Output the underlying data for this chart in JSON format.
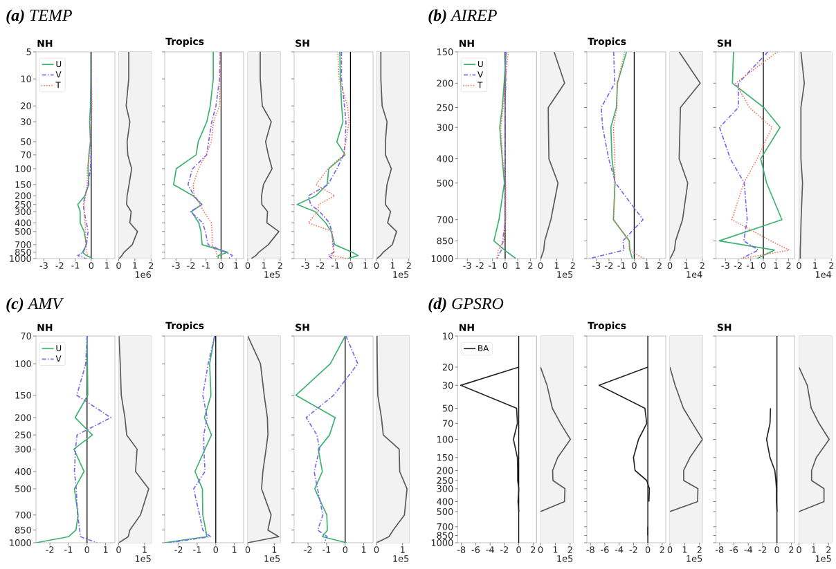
{
  "chart_data": [
    {
      "type": "other",
      "title": "**(a)** TEMP"
    },
    {
      "type": "line",
      "title": "NH",
      "xlim": [
        -3.5,
        1.5
      ],
      "ylim": [
        1000,
        5
      ],
      "log": "y",
      "legend": "top left",
      "xticks": [
        -3,
        -2,
        -1,
        0,
        1
      ],
      "yticks": [
        5,
        10,
        20,
        30,
        50,
        70,
        100,
        150,
        200,
        250,
        300,
        400,
        500,
        700,
        850,
        1000
      ],
      "ref_lines": [
        {
          "axis": "x",
          "value": 0,
          "color": "#000000"
        }
      ],
      "series": [
        {
          "name": "U",
          "color": "#3cb371",
          "line_style": "solid",
          "x": [
            -0.03,
            -0.03,
            -0.05,
            -0.1,
            -0.05,
            -0.15,
            -0.2,
            -0.15,
            -0.4,
            -0.85,
            -0.7,
            -0.7,
            -0.45,
            -0.3,
            -0.55,
            -0.3,
            0.1
          ],
          "values": [
            5,
            10,
            20,
            30,
            50,
            70,
            100,
            150,
            200,
            250,
            300,
            400,
            500,
            700,
            850,
            925,
            1000
          ]
        },
        {
          "name": "V",
          "color": "#7b68ee",
          "line_style": "dashdot",
          "x": [
            0,
            0,
            0,
            0,
            0,
            -0.02,
            -0.05,
            -0.2,
            -0.4,
            -0.5,
            -0.45,
            -0.3,
            -0.2,
            -0.3,
            -0.5,
            -0.85,
            -0.3
          ],
          "values": [
            5,
            10,
            20,
            30,
            50,
            70,
            100,
            150,
            200,
            250,
            300,
            400,
            500,
            700,
            850,
            925,
            1000
          ]
        },
        {
          "name": "T",
          "color": "#ff6347",
          "line_style": "dotted",
          "x": [
            0,
            0.02,
            0.05,
            0,
            -0.05,
            -0.1,
            -0.25,
            -0.25,
            -0.35,
            -0.45,
            -0.45,
            -0.4,
            -0.35,
            -0.35,
            -0.3,
            -0.2,
            -0.2
          ],
          "values": [
            5,
            10,
            20,
            30,
            50,
            70,
            100,
            150,
            200,
            250,
            300,
            400,
            500,
            700,
            850,
            925,
            1000
          ]
        }
      ]
    },
    {
      "type": "line",
      "xlim": [
        0,
        2.03
      ],
      "ylim": [
        1000,
        5
      ],
      "log": "y",
      "tick_labels": "x",
      "annotations": [
        "1e6"
      ],
      "xticks": [
        0,
        1,
        2
      ],
      "series": [
        {
          "color": "#5a5a5a",
          "x": [
            0.62,
            0.62,
            0.46,
            0.69,
            0.52,
            0.56,
            0.8,
            0.64,
            0.52,
            0.49,
            0.77,
            0.69,
            1.16,
            0.84,
            0.33,
            0.2,
            0.03
          ],
          "values": [
            5,
            10,
            20,
            30,
            50,
            70,
            100,
            150,
            200,
            250,
            300,
            400,
            500,
            700,
            850,
            925,
            1000
          ]
        }
      ]
    },
    {
      "type": "line",
      "title": "Tropics",
      "xlim": [
        -3.75,
        1.5
      ],
      "ylim": [
        1000,
        5
      ],
      "log": "y",
      "tick_labels": "x",
      "xticks": [
        -3,
        -2,
        -1,
        0,
        1
      ],
      "yticks": [
        5,
        10,
        20,
        30,
        50,
        70,
        100,
        150,
        200,
        250,
        300,
        400,
        500,
        700,
        850,
        1000
      ],
      "ref_lines": [
        {
          "axis": "x",
          "value": 0,
          "color": "#000000"
        }
      ],
      "series": [
        {
          "color": "#3cb371",
          "line_style": "solid",
          "x": [
            -0.52,
            -0.52,
            -0.72,
            -0.95,
            -1.52,
            -1.66,
            -2.98,
            -3.16,
            -1.86,
            -1.28,
            -1.97,
            -1.48,
            -1.34,
            -1.26,
            0.45,
            -0.19,
            -0.19
          ],
          "values": [
            5,
            10,
            20,
            30,
            50,
            70,
            100,
            150,
            200,
            250,
            300,
            400,
            500,
            700,
            850,
            925,
            1000
          ]
        },
        {
          "color": "#7b68ee",
          "line_style": "dashdot",
          "x": [
            -0.05,
            -0.1,
            -0.34,
            -0.62,
            -0.83,
            -0.95,
            -1.9,
            -2.2,
            -1.8,
            -1.28,
            -2.03,
            -1.22,
            -1.05,
            -0.86,
            0.3,
            0.75,
            0.5
          ],
          "values": [
            5,
            10,
            20,
            30,
            50,
            70,
            100,
            150,
            200,
            250,
            300,
            400,
            500,
            700,
            850,
            925,
            1000
          ]
        },
        {
          "color": "#ff6347",
          "line_style": "dotted",
          "x": [
            -0.05,
            -0.05,
            -0.1,
            -0.5,
            -0.65,
            -1.0,
            -1.5,
            -1.85,
            -1.8,
            -1.4,
            -1.15,
            -0.65,
            -0.6,
            -0.6,
            -0.3,
            -0.3
          ],
          "values": [
            5,
            10,
            20,
            30,
            50,
            70,
            100,
            150,
            200,
            250,
            300,
            400,
            500,
            700,
            850,
            1000
          ]
        }
      ]
    },
    {
      "type": "line",
      "xlim": [
        0,
        2.03
      ],
      "ylim": [
        1000,
        5
      ],
      "log": "y",
      "tick_labels": "x",
      "annotations": [
        "1e5"
      ],
      "xticks": [
        0,
        1,
        2
      ],
      "series": [
        {
          "color": "#5a5a5a",
          "x": [
            0.77,
            0.77,
            0.9,
            1.45,
            1.1,
            1.27,
            1.5,
            0.97,
            0.85,
            0.87,
            1.22,
            1.18,
            1.92,
            1.27,
            0.68,
            0.5,
            0.23
          ],
          "values": [
            5,
            10,
            20,
            30,
            50,
            70,
            100,
            150,
            200,
            250,
            300,
            400,
            500,
            700,
            850,
            925,
            1000
          ]
        }
      ]
    },
    {
      "type": "line",
      "title": "SH",
      "xlim": [
        -3.75,
        1.5
      ],
      "ylim": [
        1000,
        5
      ],
      "log": "y",
      "tick_labels": "x",
      "xticks": [
        -3,
        -2,
        -1,
        0,
        1
      ],
      "yticks": [
        5,
        10,
        20,
        30,
        50,
        70,
        100,
        150,
        200,
        250,
        300,
        400,
        500,
        700,
        850,
        1000
      ],
      "ref_lines": [
        {
          "axis": "x",
          "value": 0,
          "color": "#000000"
        }
      ],
      "series": [
        {
          "color": "#3cb371",
          "line_style": "solid",
          "x": [
            -0.71,
            -0.67,
            -0.59,
            -0.5,
            -0.91,
            -0.36,
            -1.45,
            -1.55,
            -2.31,
            -3.55,
            -2.36,
            -1.66,
            -1.28,
            -1.05,
            0.1,
            0.5,
            -0.2
          ],
          "values": [
            5,
            10,
            20,
            30,
            50,
            70,
            100,
            150,
            200,
            250,
            300,
            400,
            500,
            700,
            850,
            925,
            1000
          ]
        },
        {
          "color": "#7b68ee",
          "line_style": "dashdot",
          "x": [
            -0.6,
            -0.6,
            -0.4,
            -0.3,
            -0.35,
            -0.45,
            -0.9,
            -1.5,
            -2.8,
            -2.65,
            -2.05,
            -1.4,
            -1.25,
            -1.15,
            -1.1,
            -1.5,
            -1.2
          ],
          "values": [
            5,
            10,
            20,
            30,
            50,
            70,
            100,
            150,
            200,
            250,
            300,
            400,
            500,
            700,
            850,
            925,
            1000
          ]
        },
        {
          "color": "#ff6347",
          "line_style": "dotted",
          "x": [
            -0.85,
            -0.75,
            -0.2,
            -0.1,
            -0.3,
            -0.45,
            -1.5,
            -2.3,
            -1.05,
            -2.1,
            -2.2,
            -2.8,
            -1.2,
            -1.2,
            -1.1,
            -1.3,
            -0.2
          ],
          "values": [
            5,
            10,
            20,
            30,
            50,
            70,
            100,
            150,
            200,
            250,
            300,
            400,
            500,
            700,
            850,
            925,
            1000
          ]
        }
      ]
    },
    {
      "type": "line",
      "xlim": [
        0,
        2.03
      ],
      "ylim": [
        1000,
        5
      ],
      "log": "y",
      "tick_labels": "x",
      "annotations": [
        "1e5"
      ],
      "xticks": [
        0,
        1,
        2
      ],
      "series": [
        {
          "color": "#5a5a5a",
          "x": [
            0.27,
            0.27,
            0.35,
            0.65,
            0.55,
            0.55,
            0.92,
            0.65,
            0.58,
            0.55,
            0.87,
            0.69,
            1.24,
            0.98,
            0.42,
            0.25,
            0.03
          ],
          "values": [
            5,
            10,
            20,
            30,
            50,
            70,
            100,
            150,
            200,
            250,
            300,
            400,
            500,
            700,
            850,
            925,
            1000
          ]
        }
      ]
    },
    {
      "type": "other",
      "title": "**(b)** AIREP"
    },
    {
      "type": "line",
      "title": "NH",
      "xlim": [
        -3.75,
        2.5
      ],
      "ylim": [
        1000,
        150
      ],
      "log": "y",
      "legend": "top left",
      "xticks": [
        -3,
        -2,
        -1,
        0,
        1,
        2
      ],
      "yticks": [
        150,
        200,
        250,
        300,
        400,
        500,
        700,
        850,
        1000
      ],
      "ref_lines": [
        {
          "axis": "x",
          "value": 0,
          "color": "#000000"
        }
      ],
      "series": [
        {
          "name": "U",
          "color": "#3cb371",
          "line_style": "solid",
          "x": [
            0.08,
            -0.08,
            -0.23,
            -0.43,
            -0.23,
            -0.06,
            -0.49,
            -0.89,
            -0.05,
            0.85
          ],
          "values": [
            150,
            200,
            250,
            300,
            400,
            500,
            700,
            850,
            925,
            1000
          ]
        },
        {
          "name": "V",
          "color": "#7b68ee",
          "line_style": "dashdot",
          "x": [
            0.05,
            0.05,
            0,
            0.02,
            0,
            0,
            0.02,
            -0.2,
            -0.3,
            -0.65
          ],
          "values": [
            150,
            200,
            250,
            300,
            400,
            500,
            700,
            850,
            925,
            1000
          ]
        },
        {
          "name": "T",
          "color": "#ff6347",
          "line_style": "dotted",
          "x": [
            0.25,
            0,
            -0.15,
            -0.35,
            -0.2,
            0.05,
            0.05,
            -0.1,
            -0.55,
            -0.6
          ],
          "values": [
            150,
            200,
            250,
            300,
            400,
            500,
            700,
            850,
            925,
            1000
          ]
        }
      ]
    },
    {
      "type": "line",
      "xlim": [
        0,
        2.03
      ],
      "ylim": [
        1000,
        150
      ],
      "log": "y",
      "tick_labels": "x",
      "annotations": [
        "1e5"
      ],
      "xticks": [
        0,
        1,
        2
      ],
      "series": [
        {
          "color": "#5a5a5a",
          "x": [
            0.84,
            1.49,
            0.48,
            0.49,
            0.52,
            1.08,
            0.64,
            0.26,
            0.2,
            0.02
          ],
          "values": [
            150,
            200,
            250,
            300,
            400,
            500,
            700,
            850,
            925,
            1000
          ]
        }
      ]
    },
    {
      "type": "line",
      "title": "Tropics",
      "xlim": [
        -3.75,
        2.5
      ],
      "ylim": [
        1000,
        150
      ],
      "log": "y",
      "tick_labels": "x",
      "xticks": [
        -3,
        -2,
        -1,
        0,
        1,
        2
      ],
      "yticks": [
        150,
        200,
        250,
        300,
        400,
        500,
        700,
        850,
        1000
      ],
      "ref_lines": [
        {
          "axis": "x",
          "value": 0,
          "color": "#000000"
        }
      ],
      "series": [
        {
          "color": "#3cb371",
          "line_style": "solid",
          "x": [
            -0.61,
            -1.33,
            -1.41,
            -1.85,
            -1.76,
            -1.52,
            -1.65,
            -0.39,
            -0.35,
            -0.15
          ],
          "values": [
            150,
            200,
            250,
            300,
            400,
            500,
            700,
            850,
            925,
            1000
          ]
        },
        {
          "color": "#7b68ee",
          "line_style": "dashdot",
          "x": [
            -1.63,
            -1.54,
            -2.61,
            -2.5,
            -2.02,
            -1.48,
            0.7,
            -0.9,
            -0.8,
            -3.54
          ],
          "values": [
            150,
            200,
            250,
            300,
            400,
            500,
            700,
            850,
            925,
            1000
          ]
        },
        {
          "color": "#ff6347",
          "line_style": "dotted",
          "x": [
            -0.76,
            -1.33,
            -1.37,
            -1.65,
            -1.54,
            -1.54,
            -1.63,
            -0.4,
            -0.4,
            0.76
          ],
          "values": [
            150,
            200,
            250,
            300,
            400,
            500,
            700,
            850,
            925,
            1000
          ]
        }
      ]
    },
    {
      "type": "line",
      "xlim": [
        0,
        2.03
      ],
      "ylim": [
        1000,
        150
      ],
      "log": "y",
      "tick_labels": "x",
      "annotations": [
        "1e4"
      ],
      "xticks": [
        0,
        1,
        2
      ],
      "series": [
        {
          "color": "#5a5a5a",
          "x": [
            0.57,
            1.87,
            0.65,
            0.62,
            0.57,
            1.1,
            0.78,
            0.35,
            0.28,
            0.02
          ],
          "values": [
            150,
            200,
            250,
            300,
            400,
            500,
            700,
            850,
            925,
            1000
          ]
        }
      ]
    },
    {
      "type": "line",
      "title": "SH",
      "xlim": [
        -3.75,
        2.5
      ],
      "ylim": [
        1000,
        150
      ],
      "log": "y",
      "tick_labels": "x",
      "xticks": [
        -3,
        -2,
        -1,
        0,
        1,
        2
      ],
      "yticks": [
        150,
        200,
        250,
        300,
        400,
        500,
        700,
        850,
        1000
      ],
      "ref_lines": [
        {
          "axis": "x",
          "value": 0,
          "color": "#000000"
        }
      ],
      "series": [
        {
          "color": "#3cb371",
          "line_style": "solid",
          "x": [
            -2.36,
            -2.45,
            0.04,
            1.32,
            -0.21,
            0.26,
            1.47,
            -3.5,
            0.87,
            -0.5
          ],
          "values": [
            150,
            200,
            250,
            300,
            400,
            500,
            700,
            850,
            925,
            1000
          ]
        },
        {
          "color": "#7b68ee",
          "line_style": "dashdot",
          "x": [
            0.36,
            -1.98,
            -1.98,
            -3.47,
            -2.62,
            -1.51,
            -1.28,
            -1.55,
            -0.4,
            -1.75
          ],
          "values": [
            150,
            200,
            250,
            300,
            400,
            500,
            700,
            850,
            925,
            1000
          ]
        },
        {
          "color": "#ff6347",
          "line_style": "dotted",
          "x": [
            1.1,
            -2.19,
            -1.1,
            0.68,
            -0.49,
            -1.55,
            -2.5,
            0.6,
            2.05,
            -1.7
          ],
          "values": [
            150,
            200,
            250,
            300,
            400,
            500,
            700,
            850,
            925,
            1000
          ]
        }
      ]
    },
    {
      "type": "line",
      "xlim": [
        0,
        2.03
      ],
      "ylim": [
        1000,
        150
      ],
      "log": "y",
      "tick_labels": "x",
      "annotations": [
        "1e4"
      ],
      "xticks": [
        0,
        1,
        2
      ],
      "series": [
        {
          "color": "#5a5a5a",
          "x": [
            0.12,
            0.33,
            0.12,
            0.12,
            0.22,
            0.13,
            0.1,
            0.08,
            0.08
          ],
          "values": [
            150,
            200,
            250,
            400,
            500,
            700,
            850,
            925,
            1000
          ]
        }
      ]
    },
    {
      "type": "other",
      "title": "**(c)** AMV"
    },
    {
      "type": "line",
      "title": "NH",
      "xlim": [
        -2.75,
        1.5
      ],
      "ylim": [
        1000,
        70
      ],
      "log": "y",
      "legend": "top left",
      "xticks": [
        -2,
        -1,
        0,
        1
      ],
      "yticks": [
        70,
        100,
        150,
        200,
        250,
        300,
        400,
        500,
        700,
        850,
        1000
      ],
      "ref_lines": [
        {
          "axis": "x",
          "value": 0,
          "color": "#000000"
        }
      ],
      "series": [
        {
          "name": "U",
          "color": "#3cb371",
          "line_style": "solid",
          "x": [
            0,
            0.02,
            0.04,
            -0.64,
            0.29,
            -0.71,
            -0.16,
            -0.68,
            -0.48,
            -0.6,
            -0.99,
            -2.75
          ],
          "values": [
            70,
            100,
            150,
            200,
            250,
            300,
            400,
            500,
            700,
            850,
            925,
            1000
          ]
        },
        {
          "name": "V",
          "color": "#7b68ee",
          "line_style": "dashdot",
          "x": [
            0,
            -0.07,
            -0.55,
            1.28,
            -0.54,
            -0.62,
            -0.68,
            -0.58,
            -0.51,
            -0.39,
            -0.36,
            0.54
          ],
          "values": [
            70,
            100,
            150,
            200,
            250,
            300,
            400,
            500,
            700,
            850,
            925,
            1000
          ]
        }
      ]
    },
    {
      "type": "line",
      "xlim": [
        0,
        1.27
      ],
      "ylim": [
        1000,
        70
      ],
      "log": "y",
      "tick_labels": "x",
      "annotations": [
        "1e5"
      ],
      "xticks": [
        0,
        1
      ],
      "series": [
        {
          "color": "#5a5a5a",
          "x": [
            0.01,
            0.06,
            0.1,
            0.24,
            0.31,
            0.71,
            0.65,
            1.16,
            0.84,
            0.43,
            0.37,
            0.01
          ],
          "values": [
            70,
            100,
            150,
            200,
            250,
            300,
            400,
            500,
            700,
            850,
            925,
            1000
          ]
        }
      ]
    },
    {
      "type": "line",
      "title": "Tropics",
      "xlim": [
        -2.75,
        1.5
      ],
      "ylim": [
        1000,
        70
      ],
      "log": "y",
      "tick_labels": "x",
      "xticks": [
        -2,
        -1,
        0,
        1
      ],
      "yticks": [
        70,
        100,
        150,
        200,
        250,
        300,
        400,
        500,
        700,
        850,
        1000
      ],
      "ref_lines": [
        {
          "axis": "x",
          "value": 0,
          "color": "#000000"
        }
      ],
      "series": [
        {
          "color": "#3cb371",
          "line_style": "solid",
          "x": [
            -0.06,
            -0.33,
            -0.26,
            -0.61,
            -0.23,
            -0.58,
            -1.12,
            -0.72,
            -0.7,
            -0.54,
            -0.48,
            -2.75
          ],
          "values": [
            70,
            100,
            150,
            200,
            250,
            300,
            400,
            500,
            700,
            850,
            925,
            1000
          ]
        },
        {
          "color": "#7b68ee",
          "line_style": "dashdot",
          "x": [
            -0.06,
            -0.41,
            -0.7,
            -0.46,
            -0.65,
            -0.64,
            -0.58,
            -1.19,
            -0.87,
            -0.7,
            -0.29,
            -2.54
          ],
          "values": [
            70,
            100,
            150,
            200,
            250,
            300,
            400,
            500,
            700,
            850,
            925,
            1000
          ]
        }
      ]
    },
    {
      "type": "line",
      "xlim": [
        0,
        1.24
      ],
      "ylim": [
        1000,
        70
      ],
      "log": "y",
      "tick_labels": "x",
      "annotations": [
        "1e5"
      ],
      "xticks": [
        0,
        1
      ],
      "series": [
        {
          "color": "#5a5a5a",
          "x": [
            0,
            0.48,
            0.62,
            0.74,
            0.76,
            0.69,
            0.57,
            0.52,
            0.88,
            0.76,
            1.17,
            0
          ],
          "values": [
            70,
            100,
            150,
            200,
            250,
            300,
            400,
            500,
            700,
            850,
            925,
            1000
          ]
        }
      ]
    },
    {
      "type": "line",
      "title": "SH",
      "xlim": [
        -2.75,
        1.5
      ],
      "ylim": [
        1000,
        70
      ],
      "log": "y",
      "tick_labels": "x",
      "xticks": [
        -2,
        -1,
        0,
        1
      ],
      "yticks": [
        70,
        100,
        150,
        200,
        250,
        300,
        400,
        500,
        700,
        850,
        1000
      ],
      "ref_lines": [
        {
          "axis": "x",
          "value": 0,
          "color": "#000000"
        }
      ],
      "series": [
        {
          "color": "#3cb371",
          "line_style": "solid",
          "x": [
            0,
            -0.8,
            -2.65,
            -0.54,
            -0.84,
            -1.45,
            -1.23,
            -1.64,
            -0.99,
            -0.96,
            -1.23,
            0.07
          ],
          "values": [
            70,
            100,
            150,
            200,
            250,
            300,
            400,
            500,
            700,
            850,
            925,
            1000
          ]
        },
        {
          "color": "#7b68ee",
          "line_style": "dashdot",
          "x": [
            0.04,
            0.68,
            -0.62,
            -2.1,
            -1.52,
            -1.38,
            -1.67,
            -1.49,
            -1.2,
            -1.48,
            -0.97,
            -1.13
          ],
          "values": [
            70,
            100,
            150,
            200,
            250,
            300,
            400,
            500,
            700,
            850,
            925,
            1000
          ]
        }
      ]
    },
    {
      "type": "line",
      "xlim": [
        0,
        1.26
      ],
      "ylim": [
        1000,
        70
      ],
      "log": "y",
      "tick_labels": "x",
      "annotations": [
        "1e5"
      ],
      "xticks": [
        0,
        1
      ],
      "series": [
        {
          "color": "#5a5a5a",
          "x": [
            0.02,
            0.03,
            0.05,
            0.19,
            0.26,
            0.87,
            0.89,
            1.17,
            1.07,
            0.64,
            0.48,
            0
          ],
          "values": [
            70,
            100,
            150,
            200,
            250,
            300,
            400,
            500,
            700,
            850,
            925,
            1000
          ]
        }
      ]
    },
    {
      "type": "other",
      "title": "**(d)** GPSRO"
    },
    {
      "type": "line",
      "title": "NH",
      "xlim": [
        -8.5,
        2.5
      ],
      "ylim": [
        1000,
        10
      ],
      "log": "y",
      "legend": "top left",
      "xticks": [
        -8,
        -6,
        -4,
        -2,
        0,
        2
      ],
      "yticks": [
        10,
        20,
        30,
        50,
        70,
        100,
        150,
        200,
        250,
        300,
        400,
        500,
        700,
        850,
        1000
      ],
      "ref_lines": [
        {
          "axis": "x",
          "value": 0,
          "color": "#000000"
        }
      ],
      "series": [
        {
          "name": "BA",
          "color": "#262626",
          "line_style": "solid",
          "x": [
            0,
            -8.1,
            -0.3,
            -0.19,
            -0.74,
            -0.19,
            -0.15,
            -0.15,
            0,
            -0.1,
            0
          ],
          "values": [
            20,
            30,
            50,
            70,
            100,
            150,
            200,
            250,
            300,
            400,
            500
          ]
        }
      ]
    },
    {
      "type": "line",
      "xlim": [
        0,
        2.22
      ],
      "ylim": [
        1000,
        10
      ],
      "log": "y",
      "tick_labels": "x",
      "annotations": [
        "1e5"
      ],
      "xticks": [
        0,
        1,
        2
      ],
      "series": [
        {
          "color": "#5a5a5a",
          "x": [
            0,
            0.44,
            0.8,
            1.35,
            2.02,
            1.16,
            0.82,
            0.84,
            1.65,
            1.62,
            0
          ],
          "values": [
            20,
            30,
            50,
            70,
            100,
            150,
            200,
            250,
            300,
            400,
            500
          ]
        }
      ]
    },
    {
      "type": "line",
      "title": "Tropics",
      "xlim": [
        -8.5,
        2.5
      ],
      "ylim": [
        1000,
        10
      ],
      "log": "y",
      "tick_labels": "x",
      "xticks": [
        -8,
        -6,
        -4,
        -2,
        0,
        2
      ],
      "yticks": [
        10,
        20,
        30,
        50,
        70,
        100,
        150,
        200,
        250,
        300,
        400,
        500,
        700,
        850,
        1000
      ],
      "ref_lines": [
        {
          "axis": "x",
          "value": 0,
          "color": "#000000"
        }
      ],
      "series": [
        {
          "color": "#262626",
          "line_style": "solid",
          "x": [
            0,
            -6.8,
            -0.41,
            -0.15,
            -1.3,
            -2.0,
            -1.78,
            -0.15,
            0.22,
            0.15,
            null,
            0,
            0
          ],
          "values": [
            20,
            30,
            50,
            70,
            100,
            150,
            200,
            250,
            300,
            400,
            null,
            700,
            850
          ]
        }
      ]
    },
    {
      "type": "line",
      "xlim": [
        0,
        2.22
      ],
      "ylim": [
        1000,
        10
      ],
      "log": "y",
      "tick_labels": "x",
      "annotations": [
        "1e5"
      ],
      "xticks": [
        0,
        1,
        2
      ],
      "series": [
        {
          "color": "#5a5a5a",
          "x": [
            0,
            0.35,
            0.91,
            1.53,
            2.2,
            1.35,
            0.93,
            0.93,
            1.89,
            1.87,
            0
          ],
          "values": [
            20,
            30,
            50,
            70,
            100,
            150,
            200,
            250,
            300,
            400,
            500
          ]
        }
      ]
    },
    {
      "type": "line",
      "title": "SH",
      "xlim": [
        -8.5,
        2.5
      ],
      "ylim": [
        1000,
        10
      ],
      "log": "y",
      "tick_labels": "x",
      "xticks": [
        -8,
        -6,
        -4,
        -2,
        0,
        2
      ],
      "yticks": [
        10,
        20,
        30,
        50,
        70,
        100,
        150,
        200,
        250,
        300,
        400,
        500,
        700,
        850,
        1000
      ],
      "ref_lines": [
        {
          "axis": "x",
          "value": 0,
          "color": "#000000"
        }
      ],
      "series": [
        {
          "color": "#262626",
          "line_style": "solid",
          "x": [
            -0.9,
            -0.97,
            -1.45,
            -0.97,
            -0.3,
            -0.15,
            -0.07,
            -0.07,
            0
          ],
          "values": [
            50,
            70,
            100,
            150,
            200,
            250,
            300,
            400,
            500
          ]
        }
      ]
    },
    {
      "type": "line",
      "xlim": [
        0,
        2.22
      ],
      "ylim": [
        1000,
        10
      ],
      "log": "y",
      "tick_labels": "x",
      "annotations": [
        "1e5"
      ],
      "xticks": [
        0,
        1,
        2
      ],
      "series": [
        {
          "color": "#5a5a5a",
          "x": [
            0,
            0.56,
            0.83,
            1.35,
            2.04,
            1.17,
            0.85,
            0.85,
            1.69,
            1.69,
            0
          ],
          "values": [
            20,
            30,
            50,
            70,
            100,
            150,
            200,
            250,
            300,
            400,
            500
          ]
        }
      ]
    }
  ]
}
